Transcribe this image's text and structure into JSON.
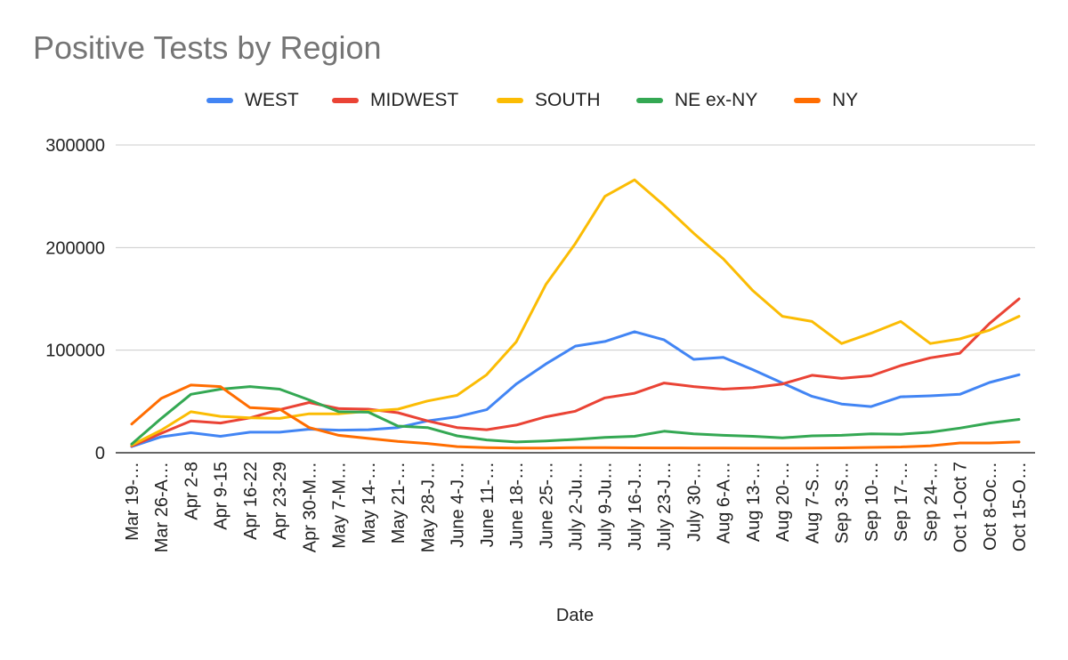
{
  "chart_data": {
    "type": "line",
    "title": "Positive Tests by Region",
    "xlabel": "Date",
    "ylabel": "",
    "ylim": [
      0,
      300000
    ],
    "yticks": [
      "0",
      "100000",
      "200000",
      "300000"
    ],
    "grid": true,
    "legend_position": "top",
    "x": [
      "Mar 19-…",
      "Mar 26-A…",
      "Apr 2-8",
      "Apr 9-15",
      "Apr 16-22",
      "Apr 23-29",
      "Apr 30-M…",
      "May 7-M…",
      "May 14-…",
      "May 21-…",
      "May 28-J…",
      "June 4-J…",
      "June 11-…",
      "June 18-…",
      "June 25-…",
      "July 2-Ju…",
      "July 9-Ju…",
      "July 16-J…",
      "July 23-J…",
      "July 30-…",
      "Aug 6-A…",
      "Aug 13-…",
      "Aug 20-…",
      "Aug 7-S…",
      "Sep 3-S…",
      "Sep 10-…",
      "Sep 17-…",
      "Sep 24-…",
      "Oct 1-Oct 7",
      "Oct 8-Oc…",
      "Oct 15-O…"
    ],
    "series": [
      {
        "name": "WEST",
        "color": "#4285f4",
        "values": [
          6000,
          15500,
          19500,
          16000,
          20000,
          20000,
          23000,
          22000,
          22500,
          24500,
          31000,
          35000,
          42000,
          67000,
          86500,
          104000,
          108500,
          118000,
          110000,
          91000,
          93000,
          81000,
          68000,
          55000,
          47500,
          45000,
          54500,
          55500,
          57000,
          68500,
          76000
        ]
      },
      {
        "name": "MIDWEST",
        "color": "#ea4335",
        "values": [
          6500,
          19000,
          31000,
          29000,
          34000,
          42000,
          49000,
          43000,
          42500,
          39000,
          31000,
          24500,
          22500,
          27000,
          35000,
          40500,
          53500,
          58000,
          68000,
          64500,
          62000,
          63500,
          67000,
          75500,
          72500,
          75000,
          85000,
          92500,
          97000,
          126000,
          150000
        ]
      },
      {
        "name": "SOUTH",
        "color": "#fbbc04",
        "values": [
          7500,
          22000,
          40000,
          35500,
          34000,
          33500,
          38000,
          38000,
          40500,
          42500,
          50500,
          56000,
          76000,
          108000,
          164000,
          204000,
          250000,
          266000,
          241000,
          214000,
          189000,
          158000,
          133000,
          128000,
          106500,
          116500,
          128000,
          106500,
          111000,
          119500,
          133000
        ]
      },
      {
        "name": "NE ex-NY",
        "color": "#34a853",
        "values": [
          8500,
          33500,
          57000,
          62000,
          64500,
          62000,
          51500,
          40000,
          39500,
          26000,
          24500,
          16500,
          12500,
          10500,
          11500,
          13000,
          15000,
          16000,
          21000,
          18500,
          17000,
          16000,
          14500,
          16500,
          17000,
          18500,
          18000,
          20000,
          24000,
          29000,
          32500
        ]
      },
      {
        "name": "NY",
        "color": "#ff6d01",
        "values": [
          28000,
          53000,
          66000,
          64500,
          44000,
          42500,
          24500,
          17000,
          14000,
          11000,
          9000,
          6000,
          5000,
          4500,
          4500,
          5000,
          5000,
          4800,
          4700,
          4600,
          4500,
          4400,
          4400,
          4600,
          4800,
          5200,
          5600,
          6800,
          9500,
          9500,
          10500
        ]
      }
    ]
  }
}
